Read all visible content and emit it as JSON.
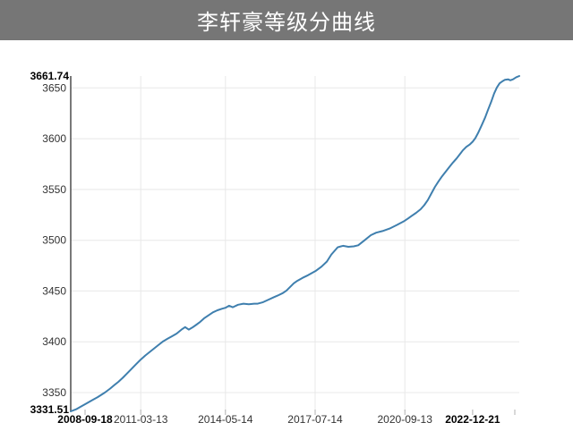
{
  "header": {
    "title": "李轩豪等级分曲线",
    "bg_color": "#767676",
    "text_color": "#ffffff"
  },
  "chart_data": {
    "type": "line",
    "title": "李轩豪等级分曲线",
    "series_name": "等级分",
    "line_color": "#3f7fae",
    "grid_color": "#e8e8e8",
    "axis_color": "#4d4d4d",
    "tick_color": "#b0b0b0",
    "label_color": "#333333",
    "endpoint_label_color": "#000000",
    "legend": "none",
    "grid": "on",
    "ylim": [
      3331.51,
      3661.74
    ],
    "y_axis": {
      "min_label": "3331.51",
      "max_label": "3661.74",
      "ticks": [
        3350,
        3400,
        3450,
        3500,
        3550,
        3600,
        3650
      ]
    },
    "x_axis": {
      "ticks": [
        {
          "label": "2008-09-18",
          "pos": 0.032,
          "bold": true
        },
        {
          "label": "2011-03-13",
          "pos": 0.156,
          "bold": false
        },
        {
          "label": "2014-05-14",
          "pos": 0.345,
          "bold": false
        },
        {
          "label": "2017-07-14",
          "pos": 0.545,
          "bold": false
        },
        {
          "label": "2020-09-13",
          "pos": 0.745,
          "bold": false
        },
        {
          "label": "2022-12-21",
          "pos": 0.896,
          "bold": true
        }
      ],
      "extra_tick_pos": [
        0.99
      ]
    },
    "points": [
      [
        0.0,
        3331.51
      ],
      [
        0.012,
        3333.5
      ],
      [
        0.022,
        3336
      ],
      [
        0.034,
        3339
      ],
      [
        0.048,
        3342.5
      ],
      [
        0.06,
        3345.5
      ],
      [
        0.076,
        3350
      ],
      [
        0.088,
        3354
      ],
      [
        0.096,
        3357
      ],
      [
        0.106,
        3360.5
      ],
      [
        0.116,
        3364.5
      ],
      [
        0.126,
        3369
      ],
      [
        0.136,
        3373.5
      ],
      [
        0.146,
        3378
      ],
      [
        0.156,
        3382.5
      ],
      [
        0.166,
        3386.5
      ],
      [
        0.176,
        3390
      ],
      [
        0.186,
        3393.5
      ],
      [
        0.196,
        3397
      ],
      [
        0.206,
        3400.5
      ],
      [
        0.216,
        3403
      ],
      [
        0.226,
        3405.5
      ],
      [
        0.236,
        3408
      ],
      [
        0.247,
        3412
      ],
      [
        0.255,
        3414.5
      ],
      [
        0.263,
        3412
      ],
      [
        0.271,
        3414
      ],
      [
        0.279,
        3416.5
      ],
      [
        0.287,
        3419
      ],
      [
        0.297,
        3423
      ],
      [
        0.307,
        3426
      ],
      [
        0.317,
        3429
      ],
      [
        0.327,
        3431
      ],
      [
        0.337,
        3432.5
      ],
      [
        0.345,
        3433.5
      ],
      [
        0.353,
        3435.5
      ],
      [
        0.361,
        3434
      ],
      [
        0.373,
        3436.5
      ],
      [
        0.385,
        3437.5
      ],
      [
        0.397,
        3437
      ],
      [
        0.409,
        3437.5
      ],
      [
        0.417,
        3437.5
      ],
      [
        0.429,
        3439
      ],
      [
        0.441,
        3441.5
      ],
      [
        0.453,
        3444
      ],
      [
        0.461,
        3445.5
      ],
      [
        0.473,
        3448
      ],
      [
        0.481,
        3450.5
      ],
      [
        0.489,
        3454
      ],
      [
        0.497,
        3457.5
      ],
      [
        0.505,
        3460
      ],
      [
        0.517,
        3463
      ],
      [
        0.529,
        3465.5
      ],
      [
        0.547,
        3470
      ],
      [
        0.559,
        3474
      ],
      [
        0.571,
        3479
      ],
      [
        0.581,
        3486
      ],
      [
        0.595,
        3493
      ],
      [
        0.607,
        3494.5
      ],
      [
        0.619,
        3493.5
      ],
      [
        0.631,
        3494
      ],
      [
        0.641,
        3495
      ],
      [
        0.655,
        3500
      ],
      [
        0.669,
        3505
      ],
      [
        0.681,
        3507.5
      ],
      [
        0.695,
        3509
      ],
      [
        0.711,
        3511.5
      ],
      [
        0.727,
        3515
      ],
      [
        0.744,
        3519
      ],
      [
        0.752,
        3521.5
      ],
      [
        0.76,
        3524
      ],
      [
        0.77,
        3527
      ],
      [
        0.78,
        3530.5
      ],
      [
        0.788,
        3534.5
      ],
      [
        0.796,
        3539.5
      ],
      [
        0.804,
        3546
      ],
      [
        0.812,
        3552.5
      ],
      [
        0.82,
        3558
      ],
      [
        0.828,
        3563
      ],
      [
        0.836,
        3567.5
      ],
      [
        0.844,
        3572
      ],
      [
        0.852,
        3576.5
      ],
      [
        0.86,
        3580.5
      ],
      [
        0.868,
        3585
      ],
      [
        0.874,
        3588.5
      ],
      [
        0.882,
        3592
      ],
      [
        0.89,
        3594.5
      ],
      [
        0.896,
        3597
      ],
      [
        0.902,
        3600.5
      ],
      [
        0.908,
        3605.5
      ],
      [
        0.916,
        3613
      ],
      [
        0.924,
        3621
      ],
      [
        0.93,
        3628
      ],
      [
        0.938,
        3637
      ],
      [
        0.944,
        3644.5
      ],
      [
        0.95,
        3650.5
      ],
      [
        0.956,
        3654.5
      ],
      [
        0.962,
        3656.5
      ],
      [
        0.968,
        3658
      ],
      [
        0.975,
        3658.5
      ],
      [
        0.98,
        3657.5
      ],
      [
        0.986,
        3658.5
      ],
      [
        0.993,
        3660.5
      ],
      [
        1.0,
        3661.74
      ]
    ]
  }
}
